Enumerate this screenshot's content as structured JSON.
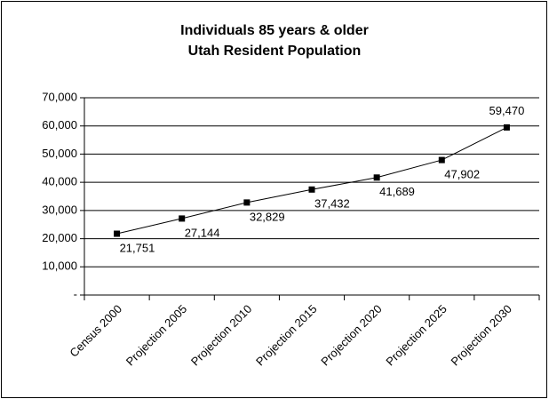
{
  "chart_data": {
    "type": "line",
    "title": "Individuals 85 years & older",
    "subtitle": "Utah Resident Population",
    "categories": [
      "Census 2000",
      "Projection 2005",
      "Projection 2010",
      "Projection 2015",
      "Projection 2020",
      "Projection 2025",
      "Projection 2030"
    ],
    "values": [
      21751,
      27144,
      32829,
      37432,
      41689,
      47902,
      59470
    ],
    "value_labels": [
      "21,751",
      "27,144",
      "32,829",
      "37,432",
      "41,689",
      "47,902",
      "59,470"
    ],
    "color": "#000000",
    "ylim": [
      0,
      70000
    ],
    "yticks": [
      {
        "value": 0,
        "label": "-"
      },
      {
        "value": 10000,
        "label": "10,000"
      },
      {
        "value": 20000,
        "label": "20,000"
      },
      {
        "value": 30000,
        "label": "30,000"
      },
      {
        "value": 40000,
        "label": "40,000"
      },
      {
        "value": 50000,
        "label": "50,000"
      },
      {
        "value": 60000,
        "label": "60,000"
      },
      {
        "value": 70000,
        "label": "70,000"
      }
    ],
    "grid": true
  }
}
